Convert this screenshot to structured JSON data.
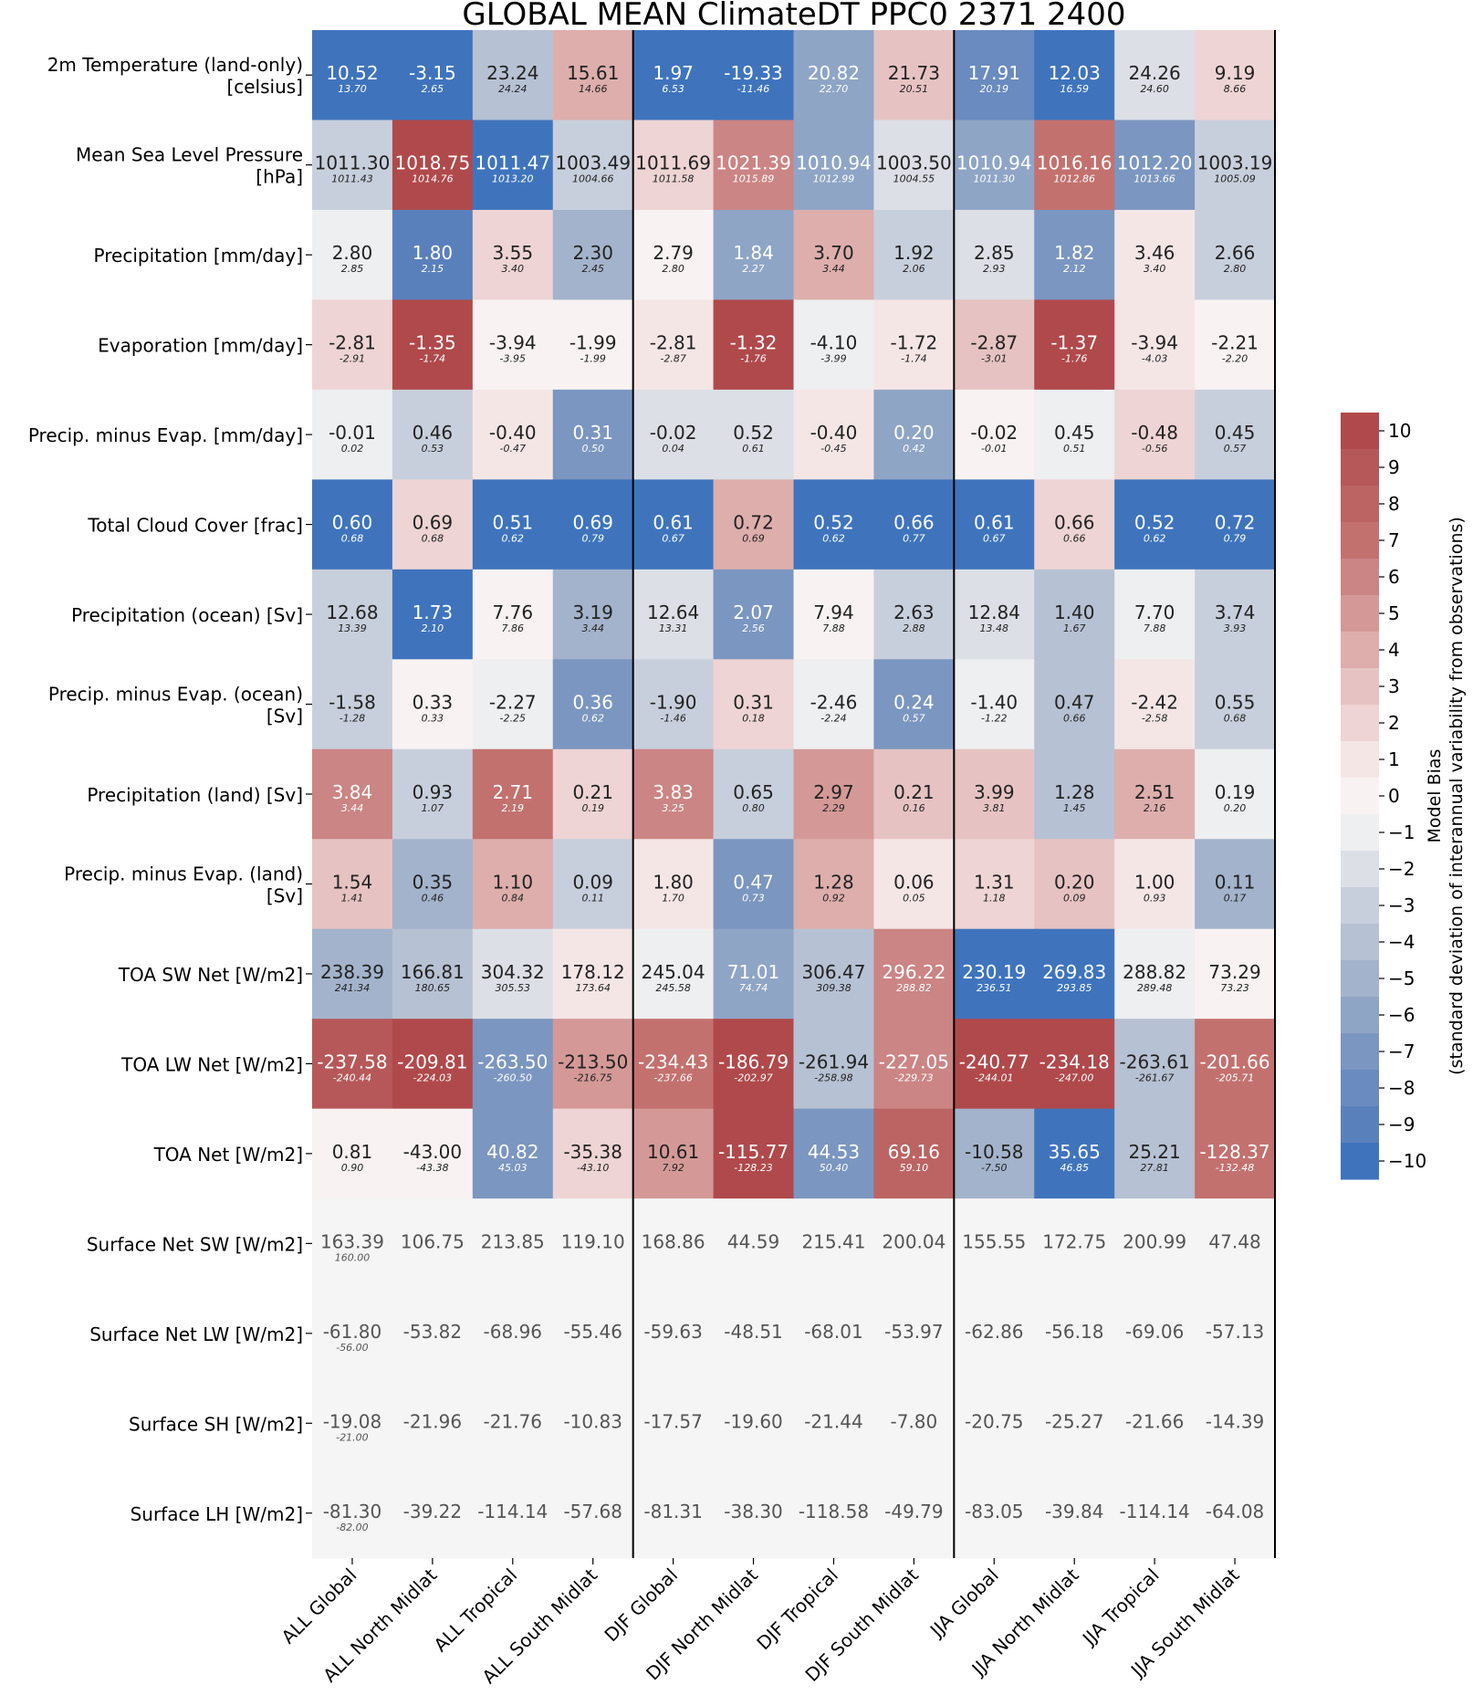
{
  "chart_data": {
    "type": "heatmap",
    "title": "GLOBAL MEAN ClimateDT PPC0 2371 2400",
    "columns": [
      "ALL Global",
      "ALL North Midlat",
      "ALL Tropical",
      "ALL South Midlat",
      "DJF Global",
      "DJF North Midlat",
      "DJF Tropical",
      "DJF South Midlat",
      "JJA Global",
      "JJA North Midlat",
      "JJA Tropical",
      "JJA South Midlat"
    ],
    "rows": [
      {
        "label_lines": [
          "2m Temperature (land-only)",
          "[celsius]"
        ],
        "values": [
          "10.52",
          "-3.15",
          "23.24",
          "15.61",
          "1.97",
          "-19.33",
          "20.82",
          "21.73",
          "17.91",
          "12.03",
          "24.26",
          "9.19"
        ],
        "obs": [
          "13.70",
          "2.65",
          "24.24",
          "14.66",
          "6.53",
          "-11.46",
          "22.70",
          "20.51",
          "20.19",
          "16.59",
          "24.60",
          "8.66"
        ],
        "bias": [
          -10,
          -10,
          -4,
          4,
          -10,
          -10,
          -6,
          3,
          -8,
          -10,
          -2,
          2
        ]
      },
      {
        "label_lines": [
          "Mean Sea Level Pressure",
          "[hPa]"
        ],
        "values": [
          "1011.30",
          "1018.75",
          "1011.47",
          "1003.49",
          "1011.69",
          "1021.39",
          "1010.94",
          "1003.50",
          "1010.94",
          "1016.16",
          "1012.20",
          "1003.19"
        ],
        "obs": [
          "1011.43",
          "1014.76",
          "1013.20",
          "1004.66",
          "1011.58",
          "1015.89",
          "1012.99",
          "1004.55",
          "1011.30",
          "1012.86",
          "1013.66",
          "1005.09"
        ],
        "bias": [
          -3,
          10,
          -10,
          -3,
          2,
          6,
          -6,
          -2,
          -6,
          7,
          -7,
          -3
        ]
      },
      {
        "label_lines": [
          "Precipitation [mm/day]"
        ],
        "values": [
          "2.80",
          "1.80",
          "3.55",
          "2.30",
          "2.79",
          "1.84",
          "3.70",
          "1.92",
          "2.85",
          "1.82",
          "3.46",
          "2.66"
        ],
        "obs": [
          "2.85",
          "2.15",
          "3.40",
          "2.45",
          "2.80",
          "2.27",
          "3.44",
          "2.06",
          "2.93",
          "2.12",
          "3.40",
          "2.80"
        ],
        "bias": [
          -1,
          -9,
          2,
          -5,
          0,
          -6,
          4,
          -3,
          -2,
          -7,
          1,
          -3
        ]
      },
      {
        "label_lines": [
          "Evaporation [mm/day]"
        ],
        "values": [
          "-2.81",
          "-1.35",
          "-3.94",
          "-1.99",
          "-2.81",
          "-1.32",
          "-4.10",
          "-1.72",
          "-2.87",
          "-1.37",
          "-3.94",
          "-2.21"
        ],
        "obs": [
          "-2.91",
          "-1.74",
          "-3.95",
          "-1.99",
          "-2.87",
          "-1.76",
          "-3.99",
          "-1.74",
          "-3.01",
          "-1.76",
          "-4.03",
          "-2.20"
        ],
        "bias": [
          2,
          10,
          0,
          0,
          1,
          10,
          -1,
          1,
          3,
          10,
          1,
          0
        ]
      },
      {
        "label_lines": [
          "Precip. minus Evap. [mm/day]"
        ],
        "values": [
          "-0.01",
          "0.46",
          "-0.40",
          "0.31",
          "-0.02",
          "0.52",
          "-0.40",
          "0.20",
          "-0.02",
          "0.45",
          "-0.48",
          "0.45"
        ],
        "obs": [
          "0.02",
          "0.53",
          "-0.47",
          "0.50",
          "0.04",
          "0.61",
          "-0.45",
          "0.42",
          "-0.01",
          "0.51",
          "-0.56",
          "0.57"
        ],
        "bias": [
          -1,
          -3,
          1,
          -7,
          -2,
          -2,
          1,
          -6,
          0,
          -1,
          2,
          -3
        ]
      },
      {
        "label_lines": [
          "Total Cloud Cover [frac]"
        ],
        "values": [
          "0.60",
          "0.69",
          "0.51",
          "0.69",
          "0.61",
          "0.72",
          "0.52",
          "0.66",
          "0.61",
          "0.66",
          "0.52",
          "0.72"
        ],
        "obs": [
          "0.68",
          "0.68",
          "0.62",
          "0.79",
          "0.67",
          "0.69",
          "0.62",
          "0.77",
          "0.67",
          "0.66",
          "0.62",
          "0.79"
        ],
        "bias": [
          -10,
          2,
          -10,
          -10,
          -10,
          4,
          -10,
          -10,
          -10,
          2,
          -10,
          -10
        ]
      },
      {
        "label_lines": [
          "Precipitation (ocean) [Sv]"
        ],
        "values": [
          "12.68",
          "1.73",
          "7.76",
          "3.19",
          "12.64",
          "2.07",
          "7.94",
          "2.63",
          "12.84",
          "1.40",
          "7.70",
          "3.74"
        ],
        "obs": [
          "13.39",
          "2.10",
          "7.86",
          "3.44",
          "13.31",
          "2.56",
          "7.88",
          "2.88",
          "13.48",
          "1.67",
          "7.88",
          "3.93"
        ],
        "bias": [
          -3,
          -10,
          0,
          -5,
          -2,
          -7,
          0,
          -3,
          -2,
          -4,
          -1,
          -3
        ]
      },
      {
        "label_lines": [
          "Precip. minus Evap. (ocean)",
          "[Sv]"
        ],
        "values": [
          "-1.58",
          "0.33",
          "-2.27",
          "0.36",
          "-1.90",
          "0.31",
          "-2.46",
          "0.24",
          "-1.40",
          "0.47",
          "-2.42",
          "0.55"
        ],
        "obs": [
          "-1.28",
          "0.33",
          "-2.25",
          "0.62",
          "-1.46",
          "0.18",
          "-2.24",
          "0.57",
          "-1.22",
          "0.66",
          "-2.58",
          "0.68"
        ],
        "bias": [
          -3,
          0,
          -1,
          -7,
          -3,
          2,
          -1,
          -7,
          -1,
          -4,
          1,
          -3
        ]
      },
      {
        "label_lines": [
          "Precipitation (land) [Sv]"
        ],
        "values": [
          "3.84",
          "0.93",
          "2.71",
          "0.21",
          "3.83",
          "0.65",
          "2.97",
          "0.21",
          "3.99",
          "1.28",
          "2.51",
          "0.19"
        ],
        "obs": [
          "3.44",
          "1.07",
          "2.19",
          "0.19",
          "3.25",
          "0.80",
          "2.29",
          "0.16",
          "3.81",
          "1.45",
          "2.16",
          "0.20"
        ],
        "bias": [
          6,
          -3,
          7,
          2,
          6,
          -3,
          5,
          3,
          3,
          -4,
          4,
          -1
        ]
      },
      {
        "label_lines": [
          "Precip. minus Evap. (land)",
          "[Sv]"
        ],
        "values": [
          "1.54",
          "0.35",
          "1.10",
          "0.09",
          "1.80",
          "0.47",
          "1.28",
          "0.06",
          "1.31",
          "0.20",
          "1.00",
          "0.11"
        ],
        "obs": [
          "1.41",
          "0.46",
          "0.84",
          "0.11",
          "1.70",
          "0.73",
          "0.92",
          "0.05",
          "1.18",
          "0.09",
          "0.93",
          "0.17"
        ],
        "bias": [
          3,
          -5,
          4,
          -3,
          1,
          -7,
          4,
          1,
          2,
          3,
          1,
          -5
        ]
      },
      {
        "label_lines": [
          "TOA SW Net [W/m2]"
        ],
        "values": [
          "238.39",
          "166.81",
          "304.32",
          "178.12",
          "245.04",
          "71.01",
          "306.47",
          "296.22",
          "230.19",
          "269.83",
          "288.82",
          "73.29"
        ],
        "obs": [
          "241.34",
          "180.65",
          "305.53",
          "173.64",
          "245.58",
          "74.74",
          "309.38",
          "288.82",
          "236.51",
          "293.85",
          "289.48",
          "73.23"
        ],
        "bias": [
          -5,
          -4,
          -2,
          1,
          -1,
          -6,
          -4,
          6,
          -10,
          -10,
          -1,
          0
        ]
      },
      {
        "label_lines": [
          "TOA LW Net [W/m2]"
        ],
        "values": [
          "-237.58",
          "-209.81",
          "-263.50",
          "-213.50",
          "-234.43",
          "-186.79",
          "-261.94",
          "-227.05",
          "-240.77",
          "-234.18",
          "-263.61",
          "-201.66"
        ],
        "obs": [
          "-240.44",
          "-224.03",
          "-260.50",
          "-216.75",
          "-237.66",
          "-202.97",
          "-258.98",
          "-229.73",
          "-244.01",
          "-247.00",
          "-261.67",
          "-205.71"
        ],
        "bias": [
          9,
          10,
          -7,
          5,
          7,
          10,
          -4,
          6,
          10,
          10,
          -4,
          7
        ]
      },
      {
        "label_lines": [
          "TOA Net [W/m2]"
        ],
        "values": [
          "0.81",
          "-43.00",
          "40.82",
          "-35.38",
          "10.61",
          "-115.77",
          "44.53",
          "69.16",
          "-10.58",
          "35.65",
          "25.21",
          "-128.37"
        ],
        "obs": [
          "0.90",
          "-43.38",
          "45.03",
          "-43.10",
          "7.92",
          "-128.23",
          "50.40",
          "59.10",
          "-7.50",
          "46.85",
          "27.81",
          "-132.48"
        ],
        "bias": [
          0,
          0,
          -7,
          2,
          5,
          10,
          -7,
          8,
          -5,
          -10,
          -4,
          7
        ]
      },
      {
        "label_lines": [
          "Surface Net SW [W/m2]"
        ],
        "values": [
          "163.39",
          "106.75",
          "213.85",
          "119.10",
          "168.86",
          "44.59",
          "215.41",
          "200.04",
          "155.55",
          "172.75",
          "200.99",
          "47.48"
        ],
        "obs": [
          "160.00",
          null,
          null,
          null,
          null,
          null,
          null,
          null,
          null,
          null,
          null,
          null
        ],
        "bias": [
          null,
          null,
          null,
          null,
          null,
          null,
          null,
          null,
          null,
          null,
          null,
          null
        ]
      },
      {
        "label_lines": [
          "Surface Net LW [W/m2]"
        ],
        "values": [
          "-61.80",
          "-53.82",
          "-68.96",
          "-55.46",
          "-59.63",
          "-48.51",
          "-68.01",
          "-53.97",
          "-62.86",
          "-56.18",
          "-69.06",
          "-57.13"
        ],
        "obs": [
          "-56.00",
          null,
          null,
          null,
          null,
          null,
          null,
          null,
          null,
          null,
          null,
          null
        ],
        "bias": [
          null,
          null,
          null,
          null,
          null,
          null,
          null,
          null,
          null,
          null,
          null,
          null
        ]
      },
      {
        "label_lines": [
          "Surface SH [W/m2]"
        ],
        "values": [
          "-19.08",
          "-21.96",
          "-21.76",
          "-10.83",
          "-17.57",
          "-19.60",
          "-21.44",
          "-7.80",
          "-20.75",
          "-25.27",
          "-21.66",
          "-14.39"
        ],
        "obs": [
          "-21.00",
          null,
          null,
          null,
          null,
          null,
          null,
          null,
          null,
          null,
          null,
          null
        ],
        "bias": [
          null,
          null,
          null,
          null,
          null,
          null,
          null,
          null,
          null,
          null,
          null,
          null
        ]
      },
      {
        "label_lines": [
          "Surface LH [W/m2]"
        ],
        "values": [
          "-81.30",
          "-39.22",
          "-114.14",
          "-57.68",
          "-81.31",
          "-38.30",
          "-118.58",
          "-49.79",
          "-83.05",
          "-39.84",
          "-114.14",
          "-64.08"
        ],
        "obs": [
          "-82.00",
          null,
          null,
          null,
          null,
          null,
          null,
          null,
          null,
          null,
          null,
          null
        ],
        "bias": [
          null,
          null,
          null,
          null,
          null,
          null,
          null,
          null,
          null,
          null,
          null,
          null
        ]
      }
    ],
    "colorbar": {
      "label_lines": [
        "Model Bias",
        "(standard deviation of interannual variability from observations)"
      ],
      "range": [
        -10,
        10
      ],
      "ticks": [
        "10",
        "9",
        "8",
        "7",
        "6",
        "5",
        "4",
        "3",
        "2",
        "1",
        "0",
        "−1",
        "−2",
        "−3",
        "−4",
        "−5",
        "−6",
        "−7",
        "−8",
        "−9",
        "−10"
      ],
      "colors_high_to_low": [
        "#b0494b",
        "#b65859",
        "#bc6463",
        "#c3716f",
        "#cb8584",
        "#d49997",
        "#ddaeac",
        "#e6c3c2",
        "#eed4d4",
        "#f5e6e6",
        "#f8f2f2",
        "#eeeff1",
        "#dcdfe6",
        "#c8cfdc",
        "#b6c1d3",
        "#a3b3cb",
        "#8fa5c6",
        "#7b96c0",
        "#6a8bbf",
        "#5a80bc",
        "#3f74bd"
      ]
    },
    "missing_color": "#f5f5f5",
    "grid": false,
    "legend_placement": "right"
  }
}
